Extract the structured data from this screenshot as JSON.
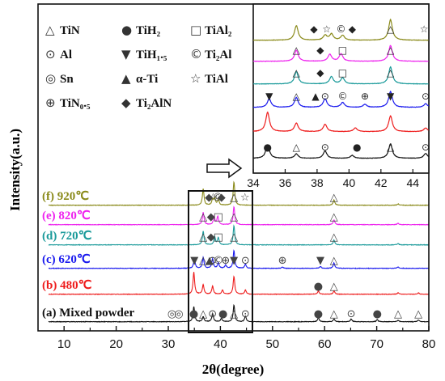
{
  "chart_data": {
    "type": "line",
    "title": "",
    "xlabel": "2θ(degree)",
    "ylabel": "Intensity(a.u.)",
    "xlim": [
      5,
      80
    ],
    "x_ticks": [
      "10",
      "20",
      "30",
      "40",
      "50",
      "60",
      "70",
      "80"
    ],
    "inset": {
      "xlim": [
        34,
        45
      ],
      "x_ticks": [
        "34",
        "36",
        "38",
        "40",
        "42",
        "44"
      ],
      "zoom_box_main_range": [
        34,
        45
      ]
    },
    "legend": [
      {
        "symbol": "△",
        "label": "TiN"
      },
      {
        "symbol": "●",
        "label": "TiH₂"
      },
      {
        "symbol": "□",
        "label": "TiAl₂"
      },
      {
        "symbol": "⊙",
        "label": "Al"
      },
      {
        "symbol": "▼",
        "label": "TiH₁.₅"
      },
      {
        "symbol": "©",
        "label": "Ti₂Al"
      },
      {
        "symbol": "◎",
        "label": "Sn"
      },
      {
        "symbol": "▲",
        "label": "α-Ti"
      },
      {
        "symbol": "☆",
        "label": "TiAl"
      },
      {
        "symbol": "⊕",
        "label": "TiN₀.₅"
      },
      {
        "symbol": "◆",
        "label": "Ti₂AlN"
      }
    ],
    "series": [
      {
        "name": "(a) Mixed powder",
        "color": "#111111",
        "peaks": [
          [
            34.9,
            0.55
          ],
          [
            36.7,
            0.18
          ],
          [
            38.5,
            0.3
          ],
          [
            40.2,
            0.12
          ],
          [
            42.6,
            0.6
          ],
          [
            44.8,
            0.2
          ],
          [
            58.8,
            0.15
          ],
          [
            61.8,
            0.1
          ],
          [
            65.1,
            0.1
          ],
          [
            70.1,
            0.08
          ],
          [
            74.1,
            0.05
          ],
          [
            78.0,
            0.06
          ]
        ],
        "markers": [
          [
            30.7,
            "◎"
          ],
          [
            32.0,
            "◎"
          ],
          [
            34.9,
            "●"
          ],
          [
            36.7,
            "△"
          ],
          [
            38.5,
            "⊙"
          ],
          [
            40.5,
            "●"
          ],
          [
            42.6,
            "△"
          ],
          [
            44.8,
            "⊙"
          ],
          [
            58.8,
            "●"
          ],
          [
            61.8,
            "△"
          ],
          [
            65.1,
            "⊙"
          ],
          [
            70.1,
            "●"
          ],
          [
            74.1,
            "△"
          ],
          [
            78.0,
            "△"
          ]
        ]
      },
      {
        "name": "(b) 480℃",
        "color": "#ee1c1c",
        "peaks": [
          [
            34.9,
            0.8
          ],
          [
            36.7,
            0.35
          ],
          [
            38.5,
            0.3
          ],
          [
            40.4,
            0.15
          ],
          [
            42.6,
            0.65
          ],
          [
            44.8,
            0.15
          ],
          [
            58.8,
            0.12
          ],
          [
            61.8,
            0.12
          ],
          [
            74.1,
            0.05
          ],
          [
            78.0,
            0.05
          ]
        ],
        "markers": [
          [
            58.8,
            "●"
          ],
          [
            61.8,
            "△"
          ]
        ]
      },
      {
        "name": "(c) 620℃",
        "color": "#1a1aee",
        "peaks": [
          [
            35.0,
            0.35
          ],
          [
            36.7,
            0.4
          ],
          [
            38.5,
            0.35
          ],
          [
            39.6,
            0.2
          ],
          [
            41.0,
            0.12
          ],
          [
            42.6,
            0.65
          ],
          [
            44.8,
            0.15
          ],
          [
            51.9,
            0.04
          ],
          [
            59.2,
            0.07
          ],
          [
            61.8,
            0.2
          ],
          [
            74.1,
            0.05
          ]
        ],
        "markers": [
          [
            35.0,
            "▼"
          ],
          [
            36.7,
            "△"
          ],
          [
            37.9,
            "▲"
          ],
          [
            38.5,
            "⊙"
          ],
          [
            39.6,
            "©"
          ],
          [
            41.0,
            "⊕"
          ],
          [
            42.6,
            "▼"
          ],
          [
            44.8,
            "⊙"
          ],
          [
            51.9,
            "⊕"
          ],
          [
            59.2,
            "▼"
          ],
          [
            61.8,
            "△"
          ]
        ]
      },
      {
        "name": "(d) 720℃",
        "color": "#1a9a9a",
        "peaks": [
          [
            36.7,
            0.5
          ],
          [
            38.9,
            0.3
          ],
          [
            39.6,
            0.25
          ],
          [
            42.6,
            0.7
          ],
          [
            61.8,
            0.18
          ],
          [
            74.1,
            0.05
          ]
        ],
        "markers": [
          [
            36.7,
            "△"
          ],
          [
            38.2,
            "◆"
          ],
          [
            39.6,
            "□"
          ],
          [
            42.6,
            "△"
          ],
          [
            61.8,
            "△"
          ]
        ]
      },
      {
        "name": "(e) 820℃",
        "color": "#ee22ee",
        "peaks": [
          [
            36.7,
            0.45
          ],
          [
            38.8,
            0.28
          ],
          [
            39.5,
            0.3
          ],
          [
            42.6,
            0.65
          ],
          [
            61.8,
            0.18
          ],
          [
            74.1,
            0.05
          ]
        ],
        "markers": [
          [
            36.7,
            "△"
          ],
          [
            38.2,
            "◆"
          ],
          [
            39.6,
            "□"
          ],
          [
            42.6,
            "△"
          ],
          [
            61.8,
            "△"
          ]
        ]
      },
      {
        "name": "(f) 920℃",
        "color": "#8a8a1a",
        "peaks": [
          [
            36.7,
            0.6
          ],
          [
            38.5,
            0.2
          ],
          [
            38.9,
            0.25
          ],
          [
            39.6,
            0.2
          ],
          [
            42.6,
            0.85
          ],
          [
            61.8,
            0.2
          ],
          [
            74.1,
            0.05
          ]
        ],
        "markers": [
          [
            37.8,
            "◆"
          ],
          [
            38.6,
            "☆"
          ],
          [
            39.5,
            "©"
          ],
          [
            40.2,
            "◆"
          ],
          [
            42.6,
            "△"
          ],
          [
            44.7,
            "☆"
          ],
          [
            61.8,
            "△"
          ]
        ]
      }
    ],
    "inset_series_labels": [],
    "grid": false,
    "legend_placement": "top-left"
  }
}
